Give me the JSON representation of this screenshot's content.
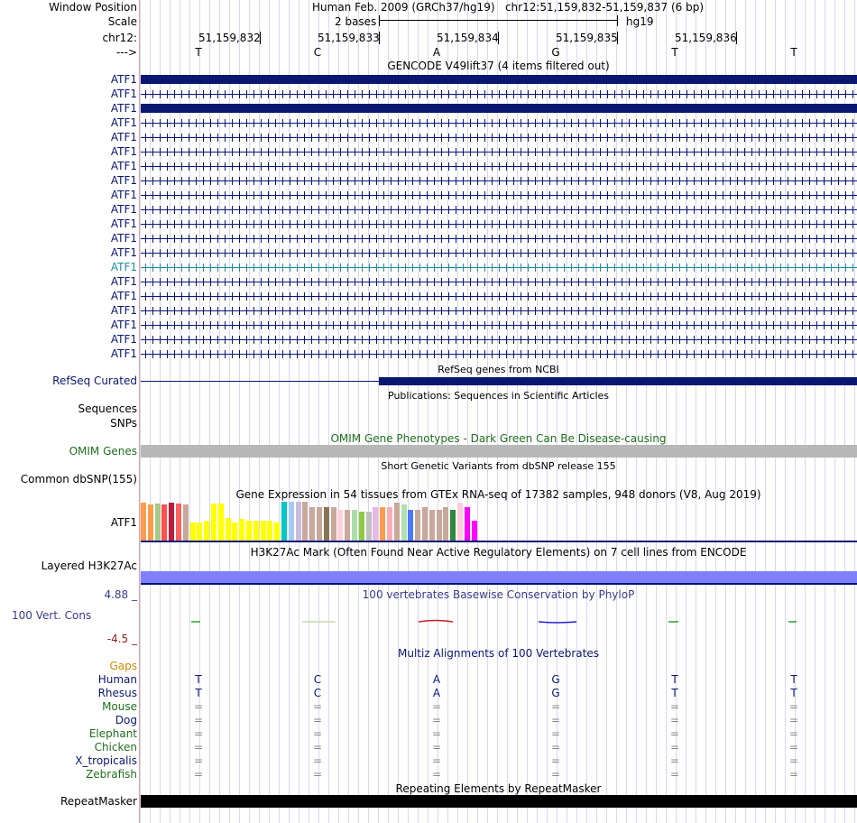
{
  "header": {
    "window_position_label": "Window Position",
    "window_position_value": "Human Feb. 2009 (GRCh37/hg19)   chr12:51,159,832-51,159,837 (6 bp)",
    "scale_label": "Scale",
    "scale_text": "2 bases",
    "assembly": "hg19",
    "chrom_label": "chr12:",
    "strand_label": "--->",
    "positions": [
      "51,159,832",
      "51,159,833",
      "51,159,834",
      "51,159,835",
      "51,159,836"
    ]
  },
  "bases": [
    "T",
    "C",
    "A",
    "G",
    "T",
    "T"
  ],
  "gencode": {
    "title": "GENCODE V49lift37 (4 items filtered out)",
    "transcripts": [
      "ATF1",
      "ATF1",
      "ATF1",
      "ATF1",
      "ATF1",
      "ATF1",
      "ATF1",
      "ATF1",
      "ATF1",
      "ATF1",
      "ATF1",
      "ATF1",
      "ATF1",
      "ATF1",
      "ATF1",
      "ATF1",
      "ATF1",
      "ATF1",
      "ATF1",
      "ATF1"
    ],
    "highlight_index": 13
  },
  "refseq": {
    "title": "RefSeq genes from NCBI",
    "label": "RefSeq Curated"
  },
  "publications": {
    "title": "Publications: Sequences in Scientific Articles",
    "labels": [
      "Sequences",
      "SNPs"
    ]
  },
  "omim": {
    "title": "OMIM Gene Phenotypes - Dark Green Can Be Disease-causing",
    "label": "OMIM Genes"
  },
  "dbsnp": {
    "title": "Short Genetic Variants from dbSNP release 155",
    "label": "Common dbSNP(155)"
  },
  "gtex": {
    "title": "Gene Expression in 54 tissues from GTEx RNA-seq of 17382 samples, 948 donors (V8, Aug 2019)",
    "label": "ATF1",
    "levels": [
      0.97,
      0.92,
      0.95,
      0.92,
      0.97,
      0.95,
      0.92,
      0.47,
      0.47,
      0.5,
      0.95,
      0.95,
      0.58,
      0.47,
      0.55,
      0.5,
      0.5,
      0.5,
      0.5,
      0.47,
      1.0,
      1.0,
      1.0,
      1.0,
      0.86,
      0.86,
      0.86,
      0.86,
      0.8,
      0.8,
      0.8,
      0.75,
      0.75,
      0.86,
      0.86,
      0.86,
      0.97,
      0.92,
      0.8,
      0.8,
      0.86,
      0.8,
      0.8,
      0.86,
      0.8,
      0.97,
      0.86,
      0.5
    ],
    "colors": [
      "#ff9b4a",
      "#ff9b4a",
      "#a5c98a",
      "#ff4f4f",
      "#bb1e3c",
      "#ff6060",
      "#c8a89a",
      "#ffff00",
      "#ffff00",
      "#ffff00",
      "#ffff00",
      "#ffff00",
      "#ffff00",
      "#ffff00",
      "#ffff00",
      "#ffff00",
      "#ffff00",
      "#ffff00",
      "#ffff00",
      "#ffff00",
      "#00c8c8",
      "#a8c8f8",
      "#ccbbdd",
      "#c8a89a",
      "#c8a89a",
      "#c8a89a",
      "#8b7355",
      "#c8a89a",
      "#ffd1dc",
      "#c8a89a",
      "#aaddaa",
      "#8ccc44",
      "#c0c0c0",
      "#e5b8e5",
      "#ff9b4a",
      "#ffaabb",
      "#c8a89a",
      "#b0e0b0",
      "#4c79ff",
      "#c8a89a",
      "#c8a89a",
      "#c8a89a",
      "#c8a89a",
      "#c8a89a",
      "#2d8a3c",
      "#ffccdd",
      "#ff00ff",
      "#ff00ff"
    ]
  },
  "h3k27ac": {
    "title": "H3K27Ac Mark (Often Found Near Active Regulatory Elements) on 7 cell lines from ENCODE",
    "label": "Layered H3K27Ac",
    "color": "#7f7fff"
  },
  "phylop": {
    "title": "100 vertebrates Basewise Conservation by PhyloP",
    "label": "100 Vert. Cons",
    "max": "4.88 _",
    "min": "-4.5 _"
  },
  "multiz": {
    "title": "Multiz Alignments of 100 Vertebrates",
    "gaps_label": "Gaps",
    "species": [
      {
        "name": "Human",
        "seq": [
          "T",
          "C",
          "A",
          "G",
          "T",
          "T"
        ],
        "color": "#0a1770"
      },
      {
        "name": "Rhesus",
        "seq": [
          "T",
          "C",
          "A",
          "G",
          "T",
          "T"
        ],
        "color": "#0a1770"
      },
      {
        "name": "Mouse",
        "seq": [
          "=",
          "=",
          "=",
          "=",
          "=",
          "="
        ],
        "color": "#206e1e"
      },
      {
        "name": "Dog",
        "seq": [
          "=",
          "=",
          "=",
          "=",
          "=",
          "="
        ],
        "color": "#0a1770"
      },
      {
        "name": "Elephant",
        "seq": [
          "=",
          "=",
          "=",
          "=",
          "=",
          "="
        ],
        "color": "#206e1e"
      },
      {
        "name": "Chicken",
        "seq": [
          "=",
          "=",
          "=",
          "=",
          "=",
          "="
        ],
        "color": "#206e1e"
      },
      {
        "name": "X_tropicalis",
        "seq": [
          "=",
          "=",
          "=",
          "=",
          "=",
          "="
        ],
        "color": "#0a1770"
      },
      {
        "name": "Zebrafish",
        "seq": [
          "=",
          "=",
          "=",
          "=",
          "=",
          "="
        ],
        "color": "#206e1e"
      }
    ]
  },
  "repeatmasker": {
    "title": "Repeating Elements by RepeatMasker",
    "label": "RepeatMasker"
  }
}
